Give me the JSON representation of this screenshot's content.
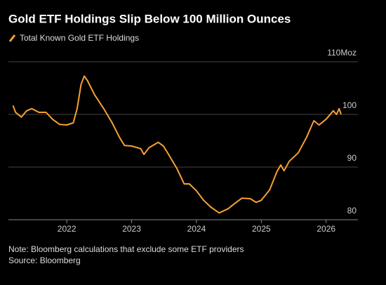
{
  "chart_data": {
    "type": "line",
    "title": "Gold ETF Holdings Slip Below 100 Million Ounces",
    "note": "Note: Bloomberg calculations that exclude some ETF providers",
    "source": "Source: Bloomberg",
    "series": [
      {
        "name": "Total Known Gold ETF Holdings",
        "color": "#f7a034",
        "x": [
          2021.17,
          2021.21,
          2021.3,
          2021.38,
          2021.46,
          2021.57,
          2021.68,
          2021.78,
          2021.89,
          2022.0,
          2022.1,
          2022.16,
          2022.22,
          2022.27,
          2022.32,
          2022.43,
          2022.57,
          2022.7,
          2022.81,
          2022.89,
          2023.0,
          2023.14,
          2023.19,
          2023.27,
          2023.41,
          2023.49,
          2023.57,
          2023.7,
          2023.81,
          2023.89,
          2024.0,
          2024.11,
          2024.22,
          2024.35,
          2024.49,
          2024.59,
          2024.7,
          2024.83,
          2024.92,
          2025.0,
          2025.13,
          2025.24,
          2025.3,
          2025.35,
          2025.43,
          2025.57,
          2025.7,
          2025.81,
          2025.89,
          2026.0,
          2026.11,
          2026.16,
          2026.2,
          2026.23
        ],
        "values": [
          101.7,
          100.4,
          99.5,
          100.7,
          101.1,
          100.4,
          100.4,
          99.1,
          98.1,
          98,
          98.4,
          101.1,
          105.7,
          107.3,
          106.4,
          103.7,
          101.1,
          98.4,
          95.7,
          94.1,
          94,
          93.5,
          92.4,
          93.7,
          94.7,
          94,
          92.4,
          89.7,
          86.8,
          86.8,
          85.5,
          83.7,
          82.4,
          81.3,
          82.1,
          83.1,
          84.1,
          84,
          83.3,
          83.7,
          85.7,
          89.1,
          90.4,
          89.3,
          91.1,
          92.7,
          95.7,
          98.8,
          98,
          99.1,
          100.7,
          100,
          101.1,
          100
        ]
      }
    ],
    "xlim": [
      2021.1,
      2026.49
    ],
    "xticks": [
      2022,
      2023,
      2024,
      2025,
      2026
    ],
    "ylim": [
      80,
      110
    ],
    "yticks": [
      80,
      90,
      100,
      {
        "value": 110,
        "label": "110Moz"
      }
    ],
    "grid": true
  }
}
